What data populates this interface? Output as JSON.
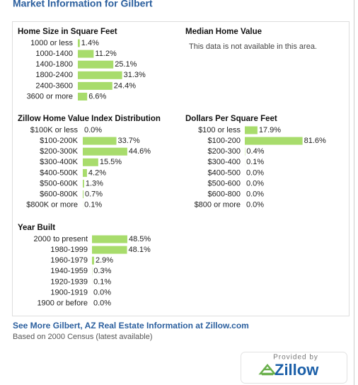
{
  "title": "Market Information for Gilbert",
  "median_home_value": {
    "title": "Median Home Value",
    "message": "This data is not available in this area."
  },
  "chart_data": [
    {
      "type": "bar",
      "orientation": "horizontal",
      "title": "Home Size in Square Feet",
      "color": "#a8dc6c",
      "categories": [
        "1000 or less",
        "1000-1400",
        "1400-1800",
        "1800-2400",
        "2400-3600",
        "3600 or more"
      ],
      "values": [
        1.4,
        11.2,
        25.1,
        31.3,
        24.4,
        6.6
      ],
      "value_labels": [
        "1.4%",
        "11.2%",
        "25.1%",
        "31.3%",
        "24.4%",
        "6.6%"
      ]
    },
    {
      "type": "bar",
      "orientation": "horizontal",
      "title": "Zillow Home Value Index Distribution",
      "color": "#a8dc6c",
      "categories": [
        "$100K or less",
        "$100-200K",
        "$200-300K",
        "$300-400K",
        "$400-500K",
        "$500-600K",
        "$600-800K",
        "$800K or more"
      ],
      "values": [
        0.0,
        33.7,
        44.6,
        15.5,
        4.2,
        1.3,
        0.7,
        0.1
      ],
      "value_labels": [
        "0.0%",
        "33.7%",
        "44.6%",
        "15.5%",
        "4.2%",
        "1.3%",
        "0.7%",
        "0.1%"
      ]
    },
    {
      "type": "bar",
      "orientation": "horizontal",
      "title": "Dollars Per Square Feet",
      "color": "#a8dc6c",
      "categories": [
        "$100 or less",
        "$100-200",
        "$200-300",
        "$300-400",
        "$400-500",
        "$500-600",
        "$600-800",
        "$800 or more"
      ],
      "values": [
        17.9,
        81.6,
        0.4,
        0.1,
        0.0,
        0.0,
        0.0,
        0.0
      ],
      "value_labels": [
        "17.9%",
        "81.6%",
        "0.4%",
        "0.1%",
        "0.0%",
        "0.0%",
        "0.0%",
        "0.0%"
      ]
    },
    {
      "type": "bar",
      "orientation": "horizontal",
      "title": "Year Built",
      "color": "#a8dc6c",
      "categories": [
        "2000 to present",
        "1980-1999",
        "1960-1979",
        "1940-1959",
        "1920-1939",
        "1900-1919",
        "1900 or before"
      ],
      "values": [
        48.5,
        48.1,
        2.9,
        0.3,
        0.1,
        0.0,
        0.0
      ],
      "value_labels": [
        "48.5%",
        "48.1%",
        "2.9%",
        "0.3%",
        "0.1%",
        "0.0%",
        "0.0%"
      ]
    }
  ],
  "link": "See More Gilbert, AZ Real Estate Information at Zillow.com",
  "note": "Based on 2000 Census (latest available)",
  "logo": {
    "caption": "Provided by",
    "brand": "Zillow"
  }
}
